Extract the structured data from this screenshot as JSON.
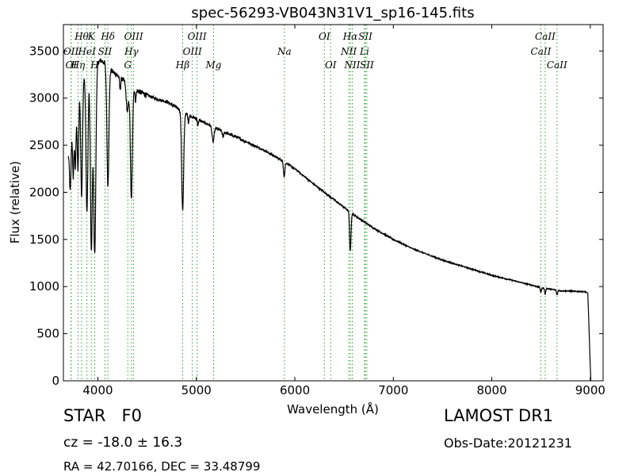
{
  "chart_data": {
    "type": "line",
    "title": "spec-56293-VB043N31V1_sp16-145.fits",
    "xlabel": "Wavelength (Å)",
    "ylabel": "Flux (relative)",
    "xlim": [
      3650,
      9130
    ],
    "ylim": [
      0,
      3780
    ],
    "xticks": [
      4000,
      5000,
      6000,
      7000,
      8000,
      9000
    ],
    "xtick_labels": [
      "4000",
      "5000",
      "6000",
      "7000",
      "8000",
      "9000"
    ],
    "yticks": [
      0,
      500,
      1000,
      1500,
      2000,
      2500,
      3000,
      3500
    ],
    "ytick_labels": [
      "0",
      "500",
      "1000",
      "1500",
      "2000",
      "2500",
      "3000",
      "3500"
    ],
    "grid": false,
    "line_color": "#000000",
    "marker_color": "#2ca02c",
    "continuum": [
      [
        3700,
        2400
      ],
      [
        3760,
        2900
      ],
      [
        3800,
        3100
      ],
      [
        3850,
        3250
      ],
      [
        3900,
        3300
      ],
      [
        3950,
        3330
      ],
      [
        4000,
        3380
      ],
      [
        4030,
        3400
      ],
      [
        4060,
        3380
      ],
      [
        4100,
        3330
      ],
      [
        4150,
        3280
      ],
      [
        4200,
        3240
      ],
      [
        4250,
        3200
      ],
      [
        4300,
        3160
      ],
      [
        4350,
        3120
      ],
      [
        4400,
        3080
      ],
      [
        4500,
        3030
      ],
      [
        4600,
        2990
      ],
      [
        4700,
        2960
      ],
      [
        4800,
        2900
      ],
      [
        4900,
        2830
      ],
      [
        5000,
        2780
      ],
      [
        5100,
        2730
      ],
      [
        5200,
        2680
      ],
      [
        5300,
        2630
      ],
      [
        5400,
        2590
      ],
      [
        5500,
        2540
      ],
      [
        5600,
        2490
      ],
      [
        5700,
        2440
      ],
      [
        5800,
        2380
      ],
      [
        5900,
        2320
      ],
      [
        6000,
        2250
      ],
      [
        6200,
        2080
      ],
      [
        6400,
        1920
      ],
      [
        6600,
        1760
      ],
      [
        6800,
        1620
      ],
      [
        7000,
        1500
      ],
      [
        7200,
        1400
      ],
      [
        7500,
        1280
      ],
      [
        8000,
        1120
      ],
      [
        8500,
        990
      ],
      [
        8700,
        955
      ],
      [
        8950,
        945
      ],
      [
        8970,
        930
      ]
    ],
    "absorption_lines": [
      {
        "w": 3720,
        "depth": 550,
        "width": 8
      },
      {
        "w": 3750,
        "depth": 650,
        "width": 7
      },
      {
        "w": 3771,
        "depth": 700,
        "width": 7
      },
      {
        "w": 3798,
        "depth": 850,
        "width": 8
      },
      {
        "w": 3835,
        "depth": 1250,
        "width": 9
      },
      {
        "w": 3889,
        "depth": 1500,
        "width": 10
      },
      {
        "w": 3934,
        "depth": 1950,
        "width": 10
      },
      {
        "w": 3968,
        "depth": 2000,
        "width": 11
      },
      {
        "w": 4102,
        "depth": 1250,
        "width": 10
      },
      {
        "w": 4226,
        "depth": 120,
        "width": 6
      },
      {
        "w": 4300,
        "depth": 300,
        "width": 12
      },
      {
        "w": 4340,
        "depth": 1200,
        "width": 10
      },
      {
        "w": 4383,
        "depth": 120,
        "width": 6
      },
      {
        "w": 4861,
        "depth": 1050,
        "width": 10
      },
      {
        "w": 4920,
        "depth": 80,
        "width": 5
      },
      {
        "w": 5015,
        "depth": 60,
        "width": 5
      },
      {
        "w": 5170,
        "depth": 160,
        "width": 10
      },
      {
        "w": 5270,
        "depth": 60,
        "width": 6
      },
      {
        "w": 5892,
        "depth": 160,
        "width": 7
      },
      {
        "w": 6563,
        "depth": 420,
        "width": 7
      },
      {
        "w": 8498,
        "depth": 50,
        "width": 6
      },
      {
        "w": 8542,
        "depth": 60,
        "width": 6
      },
      {
        "w": 8662,
        "depth": 50,
        "width": 6
      }
    ],
    "cutoff": {
      "start": 8975,
      "end": 9005,
      "floor": 0
    },
    "markers": [
      {
        "w": 3727,
        "label": "OII",
        "level": 2
      },
      {
        "w": 3729,
        "label": "OI",
        "level": 3
      },
      {
        "w": 3798,
        "label": "Hη",
        "level": 3
      },
      {
        "w": 3835,
        "label": "Hθ",
        "level": 1
      },
      {
        "w": 3889,
        "label": "HeI",
        "level": 2
      },
      {
        "w": 3934,
        "label": "K",
        "level": 1
      },
      {
        "w": 3968,
        "label": "H",
        "level": 3
      },
      {
        "w": 4072,
        "label": "SII",
        "level": 2
      },
      {
        "w": 4102,
        "label": "Hδ",
        "level": 1
      },
      {
        "w": 4304,
        "label": "G",
        "level": 3
      },
      {
        "w": 4341,
        "label": "Hγ",
        "level": 2
      },
      {
        "w": 4363,
        "label": "OIII",
        "level": 1
      },
      {
        "w": 4861,
        "label": "Hβ",
        "level": 3
      },
      {
        "w": 4959,
        "label": "OIII",
        "level": 2
      },
      {
        "w": 5007,
        "label": "OIII",
        "level": 1
      },
      {
        "w": 5175,
        "label": "Mg",
        "level": 3
      },
      {
        "w": 5894,
        "label": "Na",
        "level": 2
      },
      {
        "w": 6300,
        "label": "OI",
        "level": 1
      },
      {
        "w": 6364,
        "label": "OI",
        "level": 3
      },
      {
        "w": 6548,
        "label": "NII",
        "level": 2
      },
      {
        "w": 6563,
        "label": "Hα",
        "level": 1
      },
      {
        "w": 6583,
        "label": "NII",
        "level": 3
      },
      {
        "w": 6707,
        "label": "Li",
        "level": 2
      },
      {
        "w": 6716,
        "label": "SII",
        "level": 1
      },
      {
        "w": 6731,
        "label": "SII",
        "level": 3
      },
      {
        "w": 8498,
        "label": "CaII",
        "level": 2
      },
      {
        "w": 8542,
        "label": "CaII",
        "level": 1
      },
      {
        "w": 8662,
        "label": "CaII",
        "level": 3
      }
    ]
  },
  "info": {
    "object_class": "STAR   F0",
    "redshift": "cz = -18.0 ± 16.3",
    "coordinates": "RA = 42.70166, DEC = 33.48799",
    "survey": "LAMOST DR1",
    "obs_date": "Obs-Date:20121231"
  }
}
